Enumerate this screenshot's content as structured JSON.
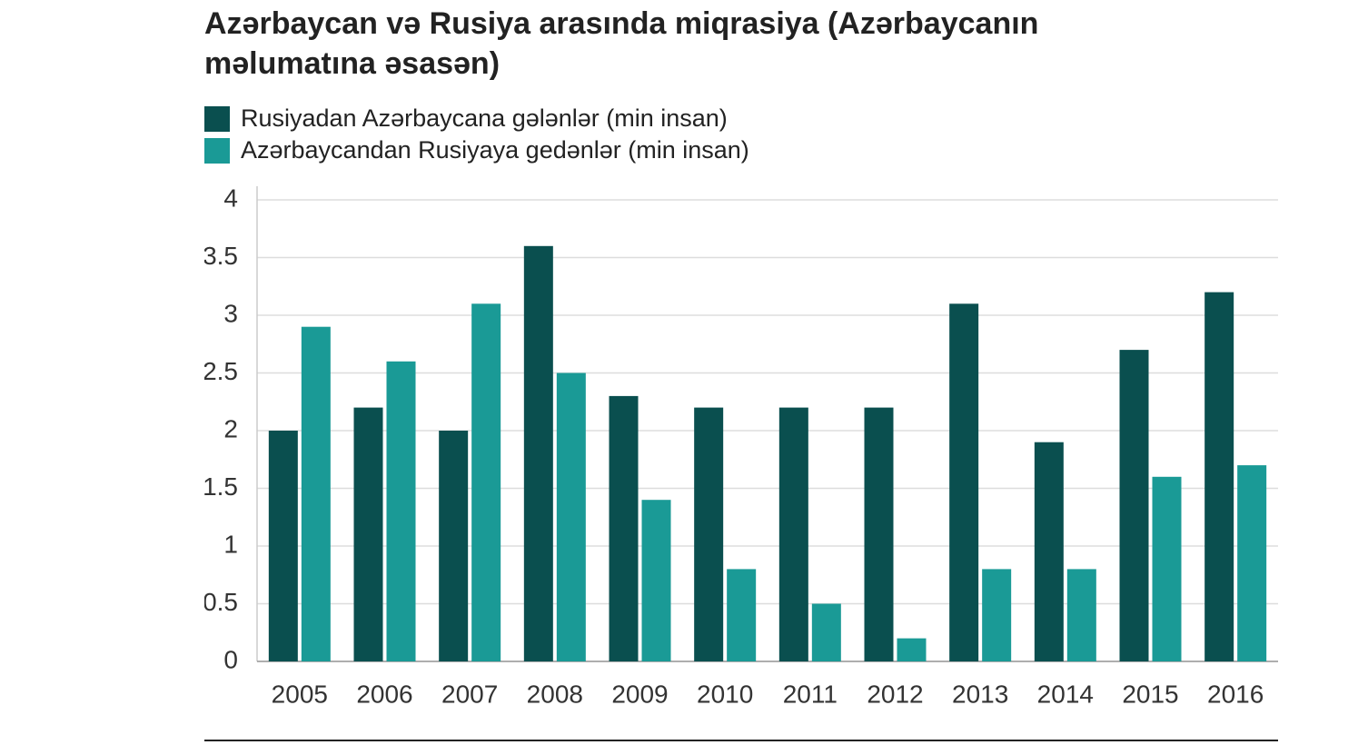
{
  "chart_data": {
    "type": "bar",
    "title": "Azərbaycan və Rusiya arasında miqrasiya (Azərbaycanın məlumatına əsasən)",
    "categories": [
      "2005",
      "2006",
      "2007",
      "2008",
      "2009",
      "2010",
      "2011",
      "2012",
      "2013",
      "2014",
      "2015",
      "2016"
    ],
    "series": [
      {
        "name": "Rusiyadan Azərbaycana gələnlər (min insan)",
        "color": "#0a4f4f",
        "values": [
          2.0,
          2.2,
          2.0,
          3.6,
          2.3,
          2.2,
          2.2,
          2.2,
          3.1,
          1.9,
          2.7,
          3.2
        ]
      },
      {
        "name": "Azərbaycandan Rusiyaya gedənlər (min insan)",
        "color": "#1a9a96",
        "values": [
          2.9,
          2.6,
          3.1,
          2.5,
          1.4,
          0.8,
          0.5,
          0.2,
          0.8,
          0.8,
          1.6,
          1.7
        ]
      }
    ],
    "ylim": [
      0,
      4
    ],
    "yticks": [
      0,
      0.5,
      1,
      1.5,
      2,
      2.5,
      3,
      3.5,
      4
    ],
    "grid": true
  }
}
